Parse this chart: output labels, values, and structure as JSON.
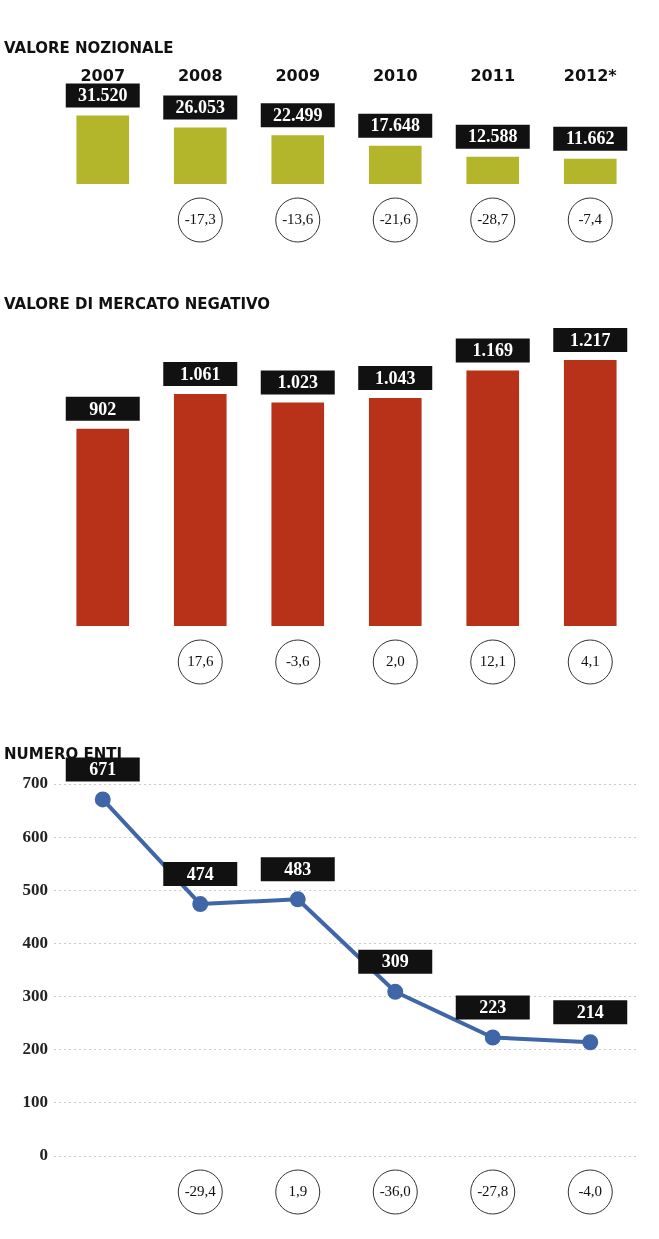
{
  "chart_data": [
    {
      "type": "bar",
      "title": "VALORE NOZIONALE",
      "categories": [
        "2007",
        "2008",
        "2009",
        "2010",
        "2011",
        "2012*"
      ],
      "values": [
        31520,
        26053,
        22499,
        17648,
        12588,
        11662
      ],
      "value_labels": [
        "31.520",
        "26.053",
        "22.499",
        "17.648",
        "12.588",
        "11.662"
      ],
      "color": "#b3b52a",
      "tick_labels": "x",
      "grid": false,
      "legend": false,
      "annotations": [
        "-17,3",
        "-13,6",
        "-21,6",
        "-28,7",
        "-7,4"
      ]
    },
    {
      "type": "bar",
      "title": "VALORE DI MERCATO NEGATIVO",
      "categories": [
        null,
        null,
        null,
        null,
        null,
        null
      ],
      "values": [
        902,
        1061,
        1023,
        1043,
        1169,
        1217
      ],
      "value_labels": [
        "902",
        "1.061",
        "1.023",
        "1.043",
        "1.169",
        "1.217"
      ],
      "color": "#b8321a",
      "tick_labels": false,
      "grid": false,
      "legend": false,
      "annotations": [
        "17,6",
        "-3,6",
        "2,0",
        "12,1",
        "4,1"
      ]
    },
    {
      "type": "line",
      "title": "NUMERO ENTI",
      "categories": [
        null,
        null,
        null,
        null,
        null,
        null
      ],
      "values": [
        671,
        474,
        483,
        309,
        223,
        214
      ],
      "data_labels": true,
      "color": "#3f66a6",
      "marker": "circle",
      "line_style": "solid",
      "ylim": [
        0,
        700
      ],
      "yticks": [
        0,
        100,
        200,
        300,
        400,
        500,
        600,
        700
      ],
      "tick_labels": "y",
      "grid": "y",
      "legend": false,
      "annotations": [
        "-29,4",
        "1,9",
        "-36,0",
        "-27,8",
        "-4,0"
      ]
    }
  ]
}
